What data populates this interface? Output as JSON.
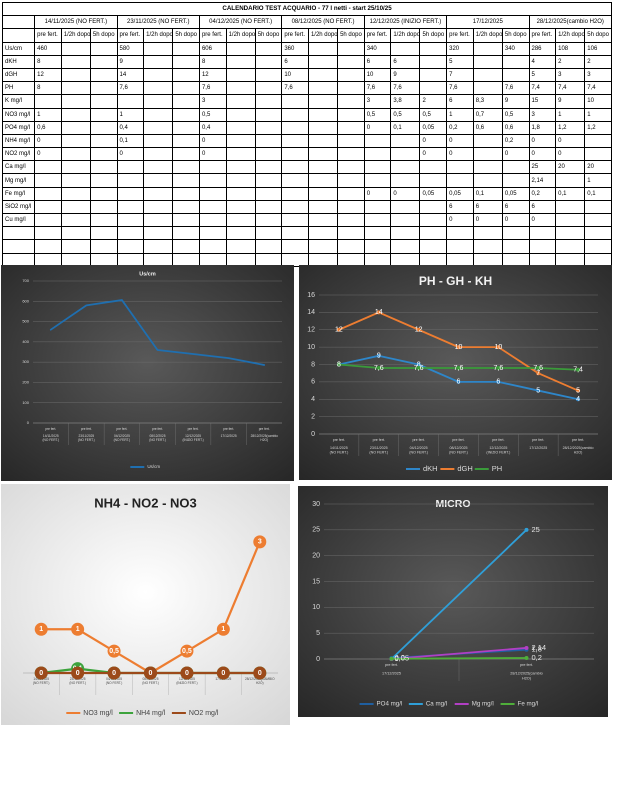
{
  "table": {
    "title": "CALENDARIO TEST ACQUARIO - 77 l netti - start 25/10/25",
    "dates": [
      "14/11/2025 (NO FERT.)",
      "23/11/2025 (NO FERT.)",
      "04/12/2025 (NO FERT.)",
      "08/12/2025 (NO FERT.)",
      "12/12/2025 (INIZIO FERT.)",
      "17/12/2025",
      "28/12/2025(cambio H2O)"
    ],
    "subheaders": [
      "pre fert.",
      "1/2h dopo",
      "5h dopo"
    ],
    "rows": [
      {
        "label": "Us/cm",
        "cells": [
          "460",
          "",
          "",
          "580",
          "",
          "",
          "606",
          "",
          "",
          "360",
          "",
          "",
          "340",
          "",
          "",
          "320",
          "",
          "340",
          "286",
          "108",
          "106"
        ]
      },
      {
        "label": "dKH",
        "cells": [
          "8",
          "",
          "",
          "9",
          "",
          "",
          "8",
          "",
          "",
          "6",
          "",
          "",
          "6",
          "6",
          "",
          "5",
          "",
          "",
          "4",
          "2",
          "2"
        ]
      },
      {
        "label": "dGH",
        "cells": [
          "12",
          "",
          "",
          "14",
          "",
          "",
          "12",
          "",
          "",
          "10",
          "",
          "",
          "10",
          "9",
          "",
          "7",
          "",
          "",
          "5",
          "3",
          "3"
        ]
      },
      {
        "label": "PH",
        "cells": [
          "8",
          "",
          "",
          "7,6",
          "",
          "",
          "7,6",
          "",
          "",
          "7,6",
          "",
          "",
          "7,6",
          "7,6",
          "",
          "7,6",
          "",
          "7,6",
          "7,4",
          "7,4",
          "7,4"
        ]
      },
      {
        "label": "K mg/l",
        "cells": [
          "",
          "",
          "",
          "",
          "",
          "",
          "3",
          "",
          "",
          "",
          "",
          "",
          "3",
          "3,8",
          "2",
          "6",
          "8,3",
          "9",
          "15",
          "9",
          "10"
        ]
      },
      {
        "label": "NO3 mg/l",
        "cells": [
          "1",
          "",
          "",
          "1",
          "",
          "",
          "0,5",
          "",
          "",
          "",
          "",
          "",
          "0,5",
          "0,5",
          "0,5",
          "1",
          "0,7",
          "0,5",
          "3",
          "1",
          "1"
        ]
      },
      {
        "label": "PO4 mg/l",
        "cells": [
          "0,6",
          "",
          "",
          "0,4",
          "",
          "",
          "0,4",
          "",
          "",
          "",
          "",
          "",
          "0",
          "0,1",
          "0,05",
          "0,2",
          "0,6",
          "0,6",
          "1,8",
          "1,2",
          "1,2"
        ]
      },
      {
        "label": "NH4 mg/l",
        "cells": [
          "0",
          "",
          "",
          "0,1",
          "",
          "",
          "0",
          "",
          "",
          "",
          "",
          "",
          "",
          "",
          "0",
          "0",
          "",
          "0,2",
          "0",
          "0",
          ""
        ]
      },
      {
        "label": "NO2 mg/l",
        "cells": [
          "0",
          "",
          "",
          "0",
          "",
          "",
          "0",
          "",
          "",
          "",
          "",
          "",
          "",
          "",
          "0",
          "0",
          "",
          "0",
          "0",
          "0",
          ""
        ]
      },
      {
        "label": "Ca mg/l",
        "cells": [
          "",
          "",
          "",
          "",
          "",
          "",
          "",
          "",
          "",
          "",
          "",
          "",
          "",
          "",
          "",
          "",
          "",
          "",
          "25",
          "20",
          "20"
        ]
      },
      {
        "label": "Mg mg/l",
        "cells": [
          "",
          "",
          "",
          "",
          "",
          "",
          "",
          "",
          "",
          "",
          "",
          "",
          "",
          "",
          "",
          "",
          "",
          "",
          "2,14",
          "",
          "1"
        ]
      },
      {
        "label": "Fe mg/l",
        "cells": [
          "",
          "",
          "",
          "",
          "",
          "",
          "",
          "",
          "",
          "",
          "",
          "",
          "0",
          "0",
          "0,05",
          "0,05",
          "0,1",
          "0,05",
          "0,2",
          "0,1",
          "0,1"
        ]
      },
      {
        "label": "SiO2 mg/l",
        "cells": [
          "",
          "",
          "",
          "",
          "",
          "",
          "",
          "",
          "",
          "",
          "",
          "",
          "",
          "",
          "",
          "6",
          "6",
          "6",
          "6",
          "",
          ""
        ]
      },
      {
        "label": "Cu mg/l",
        "cells": [
          "",
          "",
          "",
          "",
          "",
          "",
          "",
          "",
          "",
          "",
          "",
          "",
          "",
          "",
          "",
          "0",
          "0",
          "0",
          "0",
          "",
          ""
        ]
      },
      {
        "label": "",
        "cells": [
          "",
          "",
          "",
          "",
          "",
          "",
          "",
          "",
          "",
          "",
          "",
          "",
          "",
          "",
          "",
          "",
          "",
          "",
          "",
          "",
          ""
        ]
      },
      {
        "label": "",
        "cells": [
          "",
          "",
          "",
          "",
          "",
          "",
          "",
          "",
          "",
          "",
          "",
          "",
          "",
          "",
          "",
          "",
          "",
          "",
          "",
          "",
          ""
        ]
      },
      {
        "label": "",
        "cells": [
          "",
          "",
          "",
          "",
          "",
          "",
          "",
          "",
          "",
          "",
          "",
          "",
          "",
          "",
          "",
          "",
          "",
          "",
          "",
          "",
          ""
        ]
      }
    ]
  },
  "chart_data": [
    {
      "type": "line",
      "title": "Us/cm",
      "theme": "dark",
      "categories": [
        "pre fert.|14/11/2025 (NO FERT.)",
        "pre fert.|23/11/2025 (NO FERT.)",
        "pre fert.|04/12/2025 (NO FERT.)",
        "pre fert.|08/12/2025 (NO FERT.)",
        "pre fert.|12/12/2025 (INIZIO FERT.)",
        "pre fert.|17/12/2025",
        "pre fert.|28/12/2025(cambio H2O)"
      ],
      "ylim": [
        0,
        700
      ],
      "yticks": [
        0,
        100,
        200,
        300,
        400,
        500,
        600,
        700
      ],
      "grid": true,
      "legend": "bottom",
      "series": [
        {
          "name": "Us/cm",
          "values": [
            460,
            580,
            606,
            360,
            340,
            320,
            286
          ],
          "color": "#1f6fb0",
          "labels": false
        }
      ]
    },
    {
      "type": "line",
      "title": "PH - GH - KH",
      "theme": "dark",
      "categories": [
        "pre fert.|14/11/2025 (NO FERT.)",
        "pre fert.|23/11/2025 (NO FERT.)",
        "pre fert.|04/12/2025 (NO FERT.)",
        "pre fert.|08/12/2025 (NO FERT.)",
        "pre fert.|12/12/2025 (INIZIO FERT.)",
        "pre fert.|17/12/2025",
        "pre fert.|28/12/2025(cambio H2O)"
      ],
      "ylim": [
        0,
        16
      ],
      "yticks": [
        0,
        2,
        4,
        6,
        8,
        10,
        12,
        14,
        16
      ],
      "grid": true,
      "legend": "bottom",
      "series": [
        {
          "name": "dKH",
          "values": [
            8,
            9,
            8,
            6,
            6,
            5,
            4
          ],
          "display": [
            "8",
            "9",
            "8",
            "6",
            "6",
            "5",
            "4"
          ],
          "color": "#2e86c9",
          "labels": true
        },
        {
          "name": "dGH",
          "values": [
            12,
            14,
            12,
            10,
            10,
            7,
            5
          ],
          "display": [
            "12",
            "14",
            "12",
            "10",
            "10",
            "7",
            "5"
          ],
          "color": "#ed7d31",
          "labels": true
        },
        {
          "name": "PH",
          "values": [
            8,
            7.6,
            7.6,
            7.6,
            7.6,
            7.6,
            7.4
          ],
          "display": [
            "8",
            "7,6",
            "7,6",
            "7,6",
            "7,6",
            "7,6",
            "7,4"
          ],
          "color": "#3a9b3a",
          "labels": true
        }
      ]
    },
    {
      "type": "line",
      "title": "NH4 - NO2 - NO3",
      "theme": "light",
      "categories": [
        "14/11/2025 (NO FERT.)",
        "23/11/2025 (NO FERT.)",
        "04/12/2025 (NO FERT.)",
        "08/12/2025 (NO FERT.)",
        "12/12/2025 (INIZIO FERT.)",
        "17/12/2025",
        "28/12/2025(CAMBIO H2O)"
      ],
      "ylim": [
        0,
        3.5
      ],
      "grid": false,
      "legend": "bottom",
      "series": [
        {
          "name": "NO3 mg/l",
          "values": [
            1,
            1,
            0.5,
            0,
            0.5,
            1,
            3
          ],
          "display": [
            "1",
            "1",
            "0,5",
            "0",
            "0,5",
            "1",
            "3"
          ],
          "color": "#ed7d31",
          "labels": true,
          "bubble": true
        },
        {
          "name": "NH4 mg/l",
          "values": [
            0,
            0.1,
            0,
            0,
            0,
            0,
            0
          ],
          "display": [
            "0",
            "0,1",
            "0",
            "0",
            "0",
            "0",
            "0"
          ],
          "color": "#3ca33c",
          "labels": true,
          "bubble": true
        },
        {
          "name": "NO2 mg/l",
          "values": [
            0,
            0,
            0,
            0,
            0,
            0,
            0
          ],
          "display": [
            "0",
            "0",
            "0",
            "0",
            "0",
            "0",
            "0"
          ],
          "color": "#9c4a1a",
          "labels": true,
          "bubble": true
        }
      ]
    },
    {
      "type": "line",
      "title": "MICRO",
      "theme": "dark",
      "categories": [
        "pre fert.|17/12/2025",
        "pre fert.|28/12/2025(cambio H2O)"
      ],
      "ylim": [
        0,
        30
      ],
      "yticks": [
        0,
        5,
        10,
        15,
        20,
        25,
        30
      ],
      "grid": true,
      "legend": "bottom",
      "series": [
        {
          "name": "PO4 mg/l",
          "values": [
            0.2,
            1.8
          ],
          "display": [
            "0,2",
            "1,8"
          ],
          "color": "#1f5fa0",
          "labels": true
        },
        {
          "name": "Ca mg/l",
          "values": [
            0,
            25
          ],
          "display": [
            "0",
            "25"
          ],
          "color": "#2f9fd8",
          "labels": true
        },
        {
          "name": "Mg mg/l",
          "values": [
            0,
            2.14
          ],
          "display": [
            "0",
            "2,14"
          ],
          "color": "#b13fc4",
          "labels": true
        },
        {
          "name": "Fe mg/l",
          "values": [
            0.05,
            0.2
          ],
          "display": [
            "0,05",
            "0,2"
          ],
          "color": "#4fae3a",
          "labels": true
        }
      ]
    }
  ]
}
